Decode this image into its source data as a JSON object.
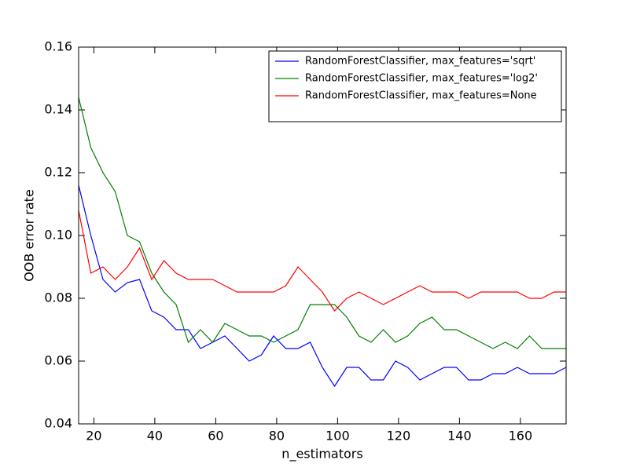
{
  "chart_data": {
    "type": "line",
    "xlabel": "n_estimators",
    "ylabel": "OOB error rate",
    "x": [
      15,
      19,
      23,
      27,
      31,
      35,
      39,
      43,
      47,
      51,
      55,
      59,
      63,
      67,
      71,
      75,
      79,
      83,
      87,
      91,
      95,
      99,
      103,
      107,
      111,
      115,
      119,
      123,
      127,
      131,
      135,
      139,
      143,
      147,
      151,
      155,
      159,
      163,
      167,
      171,
      175
    ],
    "series": [
      {
        "name": "RandomForestClassifier, max_features='sqrt'",
        "color": "#0000ff",
        "values": [
          0.116,
          0.1,
          0.086,
          0.082,
          0.085,
          0.086,
          0.076,
          0.074,
          0.07,
          0.07,
          0.064,
          0.066,
          0.068,
          0.064,
          0.06,
          0.062,
          0.068,
          0.064,
          0.064,
          0.066,
          0.058,
          0.052,
          0.058,
          0.058,
          0.054,
          0.054,
          0.06,
          0.058,
          0.054,
          0.056,
          0.058,
          0.058,
          0.054,
          0.054,
          0.056,
          0.056,
          0.058,
          0.056,
          0.056,
          0.056,
          0.058
        ]
      },
      {
        "name": "RandomForestClassifier, max_features='log2'",
        "color": "#008000",
        "values": [
          0.144,
          0.128,
          0.12,
          0.114,
          0.1,
          0.098,
          0.088,
          0.082,
          0.078,
          0.066,
          0.07,
          0.066,
          0.072,
          0.07,
          0.068,
          0.068,
          0.066,
          0.068,
          0.07,
          0.078,
          0.078,
          0.078,
          0.074,
          0.068,
          0.066,
          0.07,
          0.066,
          0.068,
          0.072,
          0.074,
          0.07,
          0.07,
          0.068,
          0.066,
          0.064,
          0.066,
          0.064,
          0.068,
          0.064,
          0.064,
          0.064
        ]
      },
      {
        "name": "RandomForestClassifier, max_features=None",
        "color": "#ff0000",
        "values": [
          0.108,
          0.088,
          0.09,
          0.086,
          0.09,
          0.096,
          0.086,
          0.092,
          0.088,
          0.086,
          0.086,
          0.086,
          0.084,
          0.082,
          0.082,
          0.082,
          0.082,
          0.084,
          0.09,
          0.086,
          0.082,
          0.076,
          0.08,
          0.082,
          0.08,
          0.078,
          0.08,
          0.082,
          0.084,
          0.082,
          0.082,
          0.082,
          0.08,
          0.082,
          0.082,
          0.082,
          0.082,
          0.08,
          0.08,
          0.082,
          0.082
        ]
      }
    ],
    "xlim": [
      15,
      175
    ],
    "xticks": [
      20,
      40,
      60,
      80,
      100,
      120,
      140,
      160
    ],
    "ylim": [
      0.04,
      0.16
    ],
    "yticks": [
      0.04,
      0.06,
      0.08,
      {
        "value": 0.1,
        "label": "0.10"
      },
      0.12,
      0.14,
      0.16
    ],
    "grid": false,
    "legend": "upper right"
  }
}
